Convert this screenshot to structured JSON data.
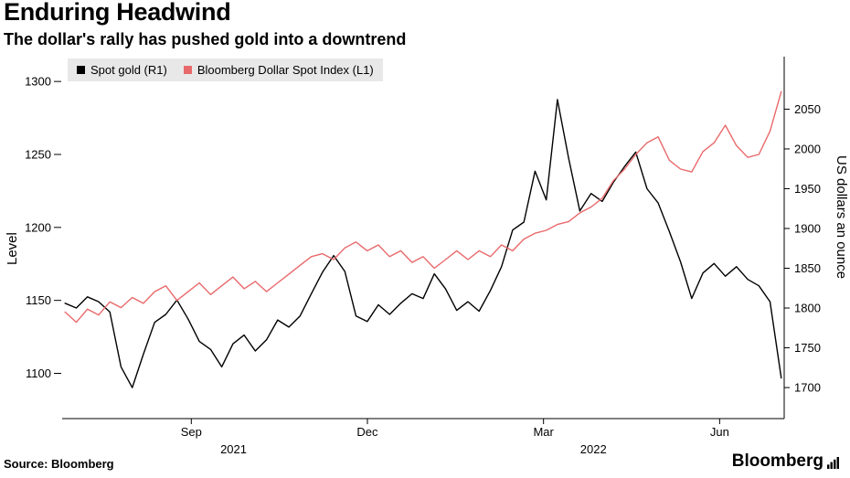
{
  "header": {
    "title": "Enduring Headwind",
    "subtitle": "The dollar's rally has pushed gold into a downtrend"
  },
  "legend": {
    "items": [
      {
        "label": "Spot gold (R1)",
        "color": "#000000"
      },
      {
        "label": "Bloomberg Dollar Spot Index (L1)",
        "color": "#e8696b"
      }
    ]
  },
  "footer": {
    "source": "Source: Bloomberg",
    "logo": "Bloomberg"
  },
  "chart_data": {
    "type": "line",
    "title": "Enduring Headwind",
    "subtitle": "The dollar's rally has pushed gold into a downtrend",
    "x_unit": "months since 2021-07-01",
    "x_domain": [
      -0.2,
      12.1
    ],
    "x_start_month": -0.15,
    "x_end_month": 12.05,
    "x_ticks": [
      {
        "label": "Sep",
        "month": 2
      },
      {
        "label": "Dec",
        "month": 5
      },
      {
        "label": "Mar",
        "month": 8
      },
      {
        "label": "Jun",
        "month": 11
      }
    ],
    "year_labels": [
      {
        "label": "2021",
        "month": 2.72
      },
      {
        "label": "2022",
        "month": 8.85
      }
    ],
    "grid": false,
    "legend_position": "top-left",
    "left_axis": {
      "label": "Level",
      "range": [
        1069,
        1317
      ],
      "ticks": [
        1100,
        1150,
        1200,
        1250,
        1300
      ]
    },
    "right_axis": {
      "label": "US dollars an ounce",
      "range": [
        1661,
        2116
      ],
      "ticks": [
        1700,
        1750,
        1800,
        1850,
        1900,
        1950,
        2000,
        2050
      ]
    },
    "series": [
      {
        "id": "spot-gold",
        "name": "Spot gold (R1)",
        "axis": "right",
        "color": "#000000",
        "values": [
          1806,
          1800,
          1814,
          1808,
          1795,
          1726,
          1700,
          1742,
          1782,
          1792,
          1810,
          1786,
          1758,
          1748,
          1726,
          1755,
          1766,
          1746,
          1760,
          1785,
          1776,
          1790,
          1818,
          1845,
          1866,
          1846,
          1790,
          1783,
          1804,
          1792,
          1806,
          1818,
          1812,
          1843,
          1824,
          1797,
          1808,
          1796,
          1822,
          1852,
          1898,
          1908,
          1972,
          1936,
          2062,
          1988,
          1922,
          1944,
          1934,
          1958,
          1978,
          1996,
          1950,
          1932,
          1896,
          1858,
          1812,
          1844,
          1856,
          1840,
          1852,
          1836,
          1828,
          1808,
          1712
        ]
      },
      {
        "id": "dollar-index",
        "name": "Bloomberg Dollar Spot Index (L1)",
        "axis": "left",
        "color": "#e8696b",
        "values": [
          1142,
          1135,
          1144,
          1140,
          1149,
          1145,
          1152,
          1148,
          1156,
          1160,
          1150,
          1156,
          1162,
          1154,
          1160,
          1166,
          1158,
          1163,
          1156,
          1162,
          1168,
          1174,
          1180,
          1182,
          1178,
          1186,
          1190,
          1184,
          1188,
          1180,
          1184,
          1176,
          1180,
          1172,
          1178,
          1184,
          1178,
          1184,
          1180,
          1188,
          1184,
          1192,
          1196,
          1198,
          1202,
          1204,
          1210,
          1214,
          1220,
          1232,
          1240,
          1250,
          1258,
          1262,
          1246,
          1240,
          1238,
          1252,
          1258,
          1270,
          1256,
          1248,
          1250,
          1266,
          1293
        ]
      }
    ]
  }
}
